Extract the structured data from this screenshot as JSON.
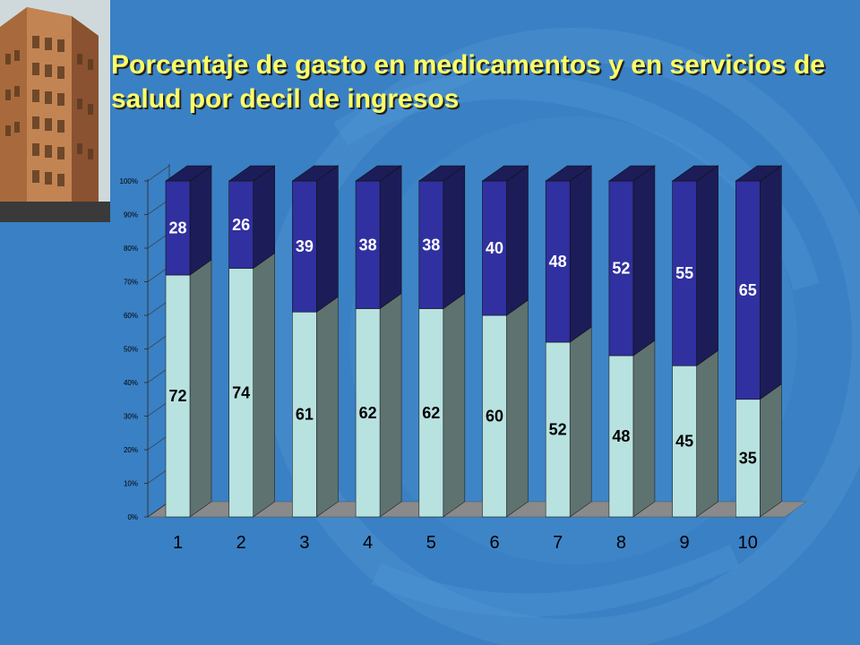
{
  "slide": {
    "title": "Porcentaje de gasto en medicamentos y en servicios de salud por decil de ingresos"
  },
  "colors": {
    "background": "#3a80c4",
    "title": "#ffff66",
    "bottom_series_front": "#b8e2e0",
    "bottom_series_side": "#5e7270",
    "top_series_front": "#3030a0",
    "top_series_side": "#1c1c58",
    "floor": "#8a8a8a"
  },
  "chart_data": {
    "type": "bar",
    "stacked": true,
    "percent_stacked": true,
    "three_d": true,
    "categories": [
      "1",
      "2",
      "3",
      "4",
      "5",
      "6",
      "7",
      "8",
      "9",
      "10"
    ],
    "series": [
      {
        "values": [
          72,
          74,
          61,
          62,
          62,
          60,
          52,
          48,
          45,
          35
        ]
      },
      {
        "values": [
          28,
          26,
          39,
          38,
          38,
          40,
          48,
          52,
          55,
          65
        ]
      }
    ],
    "yticks": [
      "0%",
      "10%",
      "20%",
      "30%",
      "40%",
      "50%",
      "60%",
      "70%",
      "80%",
      "90%",
      "100%"
    ],
    "ylim": [
      0,
      100
    ],
    "grid": false,
    "legend": "none"
  }
}
